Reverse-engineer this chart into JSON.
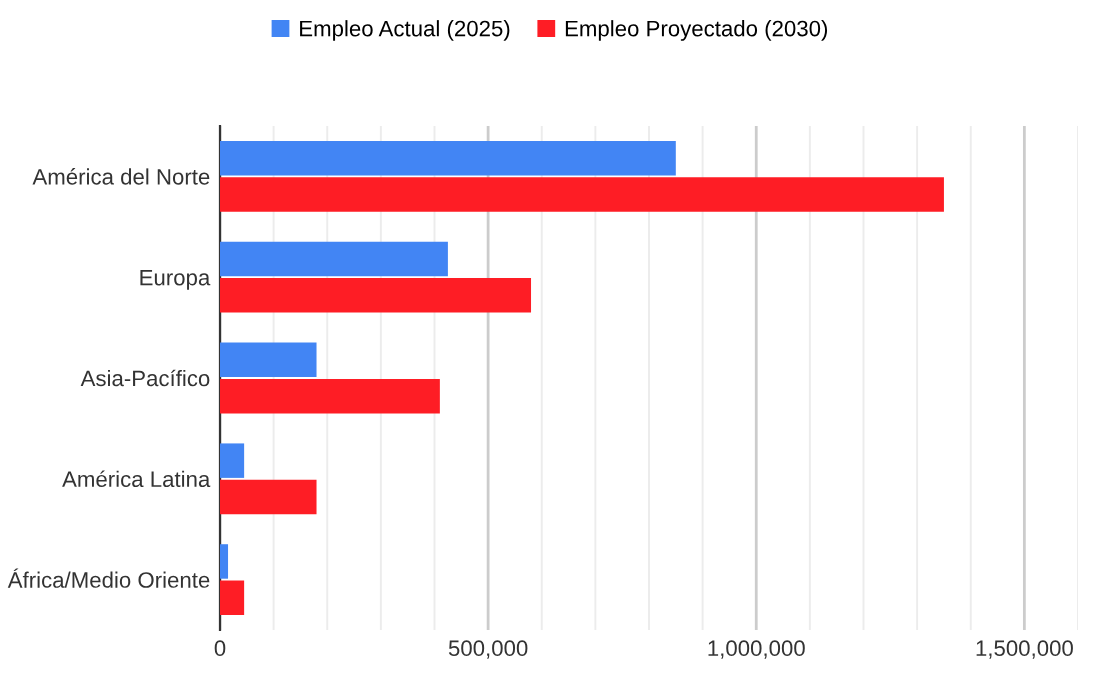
{
  "chart_data": {
    "type": "bar",
    "orientation": "horizontal",
    "categories": [
      "América del Norte",
      "Europa",
      "Asia-Pacífico",
      "América Latina",
      "África/Medio Oriente"
    ],
    "series": [
      {
        "name": "Empleo Actual (2025)",
        "color": "#4285f4",
        "values": [
          850000,
          425000,
          180000,
          45000,
          15000
        ]
      },
      {
        "name": "Empleo Proyectado (2030)",
        "color": "#fe1d25",
        "values": [
          1350000,
          580000,
          410000,
          180000,
          45000
        ]
      }
    ],
    "xlim": [
      0,
      1600000
    ],
    "xticks": [
      0,
      {
        "value": 100000,
        "label": null
      },
      {
        "value": 200000,
        "label": null
      },
      {
        "value": 300000,
        "label": null
      },
      {
        "value": 400000,
        "label": null
      },
      {
        "value": 500000,
        "label": "500,000"
      },
      {
        "value": 600000,
        "label": null
      },
      {
        "value": 700000,
        "label": null
      },
      {
        "value": 800000,
        "label": null
      },
      {
        "value": 900000,
        "label": null
      },
      {
        "value": 1000000,
        "label": "1,000,000"
      },
      {
        "value": 1100000,
        "label": null
      },
      {
        "value": 1200000,
        "label": null
      },
      {
        "value": 1300000,
        "label": null
      },
      {
        "value": 1400000,
        "label": null
      },
      {
        "value": 1500000,
        "label": "1,500,000"
      },
      {
        "value": 1600000,
        "label": null
      }
    ],
    "grid": "x",
    "legend": "top"
  }
}
